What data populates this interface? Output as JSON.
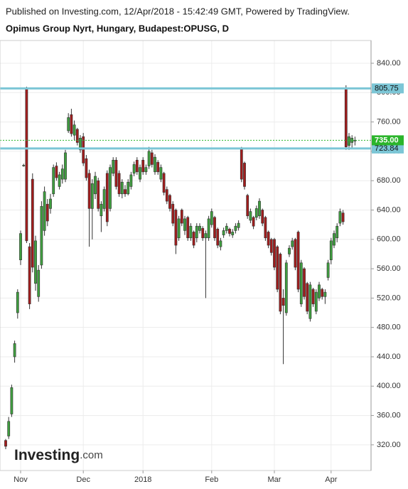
{
  "header": {
    "published": "Published on Investing.com, 12/Apr/2018 - 15:42:49 GMT, Powered by TradingView.",
    "logo": "Investing",
    "logo_suffix": ".com"
  },
  "chart_data": {
    "type": "candlestick",
    "title": "Opimus Group Nyrt, Hungary, Budapest:OPUSG, D",
    "up_color": "#3f9e3f",
    "down_color": "#a11d1d",
    "open": [
      326,
      332,
      362,
      440,
      500,
      572,
      701,
      805,
      590,
      682,
      540,
      522,
      565,
      612,
      648,
      642,
      662,
      700,
      672,
      682,
      682,
      748,
      770,
      742,
      750,
      722,
      740,
      710,
      690,
      642,
      662,
      680,
      632,
      642,
      690,
      642,
      690,
      708,
      690,
      662,
      668,
      662,
      672,
      690,
      708,
      682,
      708,
      692,
      700,
      718,
      692,
      705,
      682,
      690,
      668,
      660,
      648,
      640,
      602,
      640,
      612,
      630,
      602,
      610,
      602,
      612,
      615,
      602,
      602,
      620,
      630,
      614,
      590,
      606,
      612,
      614,
      606,
      612,
      616,
      724,
      704,
      660,
      626,
      630,
      630,
      632,
      640,
      630,
      610,
      600,
      600,
      590,
      580,
      520,
      500,
      580,
      590,
      600,
      610,
      512,
      560,
      540,
      492,
      532,
      502,
      520,
      532,
      522,
      548,
      572,
      592,
      602,
      622,
      636,
      805,
      728,
      732,
      734
    ],
    "high": [
      328,
      358,
      402,
      462,
      532,
      612,
      703,
      808,
      595,
      690,
      605,
      565,
      652,
      672,
      655,
      662,
      702,
      705,
      692,
      702,
      722,
      772,
      778,
      762,
      752,
      742,
      745,
      715,
      695,
      682,
      692,
      684,
      652,
      672,
      694,
      702,
      712,
      712,
      694,
      682,
      674,
      682,
      692,
      706,
      712,
      702,
      712,
      702,
      726,
      722,
      716,
      708,
      702,
      692,
      672,
      662,
      652,
      642,
      632,
      642,
      632,
      632,
      622,
      612,
      622,
      622,
      618,
      612,
      632,
      642,
      632,
      616,
      602,
      616,
      622,
      616,
      614,
      622,
      626,
      726,
      706,
      662,
      642,
      632,
      646,
      656,
      642,
      632,
      612,
      602,
      602,
      592,
      582,
      532,
      572,
      592,
      602,
      602,
      612,
      572,
      562,
      542,
      542,
      534,
      532,
      542,
      534,
      532,
      572,
      602,
      612,
      622,
      642,
      640,
      810,
      745,
      742,
      740
    ],
    "low": [
      314,
      328,
      358,
      432,
      492,
      565,
      699,
      595,
      505,
      555,
      530,
      515,
      560,
      605,
      618,
      635,
      658,
      680,
      668,
      676,
      678,
      745,
      740,
      735,
      728,
      718,
      700,
      680,
      590,
      600,
      655,
      638,
      610,
      638,
      618,
      638,
      686,
      668,
      658,
      656,
      658,
      660,
      668,
      686,
      688,
      678,
      688,
      688,
      696,
      698,
      688,
      688,
      678,
      660,
      648,
      638,
      618,
      580,
      598,
      618,
      606,
      598,
      598,
      588,
      596,
      608,
      598,
      520,
      598,
      616,
      598,
      588,
      585,
      602,
      608,
      604,
      602,
      608,
      612,
      678,
      668,
      628,
      622,
      614,
      626,
      628,
      618,
      598,
      588,
      578,
      558,
      528,
      498,
      430,
      496,
      576,
      586,
      558,
      528,
      508,
      518,
      498,
      488,
      508,
      498,
      516,
      518,
      512,
      544,
      566,
      588,
      596,
      618,
      620,
      722,
      722,
      724,
      728
    ],
    "close": [
      318,
      352,
      398,
      458,
      528,
      608,
      701,
      598,
      512,
      562,
      598,
      558,
      645,
      665,
      625,
      655,
      698,
      684,
      688,
      696,
      718,
      766,
      744,
      756,
      732,
      738,
      704,
      684,
      642,
      676,
      686,
      642,
      648,
      668,
      624,
      698,
      708,
      672,
      662,
      678,
      662,
      678,
      688,
      702,
      692,
      698,
      692,
      698,
      720,
      702,
      712,
      692,
      698,
      664,
      652,
      642,
      622,
      592,
      628,
      622,
      628,
      602,
      618,
      592,
      618,
      618,
      602,
      608,
      628,
      638,
      602,
      592,
      598,
      612,
      618,
      608,
      610,
      618,
      622,
      682,
      672,
      632,
      638,
      618,
      642,
      652,
      622,
      602,
      592,
      582,
      562,
      532,
      502,
      510,
      568,
      588,
      598,
      562,
      532,
      568,
      522,
      502,
      538,
      512,
      528,
      538,
      522,
      528,
      568,
      598,
      608,
      618,
      638,
      624,
      726,
      740,
      738,
      735
    ],
    "ylim": [
      285,
      871
    ],
    "yticks": [
      {
        "value": 320,
        "label": "320.00"
      },
      {
        "value": 360,
        "label": "360.00"
      },
      {
        "value": 400,
        "label": "400.00"
      },
      {
        "value": 440,
        "label": "440.00"
      },
      {
        "value": 480,
        "label": "480.00"
      },
      {
        "value": 520,
        "label": "520.00"
      },
      {
        "value": 560,
        "label": "560.00"
      },
      {
        "value": 600,
        "label": "600.00"
      },
      {
        "value": 640,
        "label": "640.00"
      },
      {
        "value": 680,
        "label": "680.00"
      },
      {
        "value": 720,
        "label": "720.00"
      },
      {
        "value": 760,
        "label": "760.00"
      },
      {
        "value": 800,
        "label": "800.00"
      },
      {
        "value": 840,
        "label": "840.00"
      }
    ],
    "xticks": [
      {
        "value": 5,
        "label": "Nov"
      },
      {
        "value": 26,
        "label": "Dec"
      },
      {
        "value": 46,
        "label": "2018"
      },
      {
        "value": 69,
        "label": "Feb"
      },
      {
        "value": 90,
        "label": "Mar"
      },
      {
        "value": 109,
        "label": "Apr"
      }
    ],
    "levels": [
      {
        "value": 805.75,
        "color": "#7cc6d6"
      },
      {
        "value": 723.84,
        "color": "#7cc6d6"
      }
    ],
    "last_price": {
      "value": 735,
      "label": "735.00",
      "color": "#2bb52b"
    },
    "grid": true
  }
}
